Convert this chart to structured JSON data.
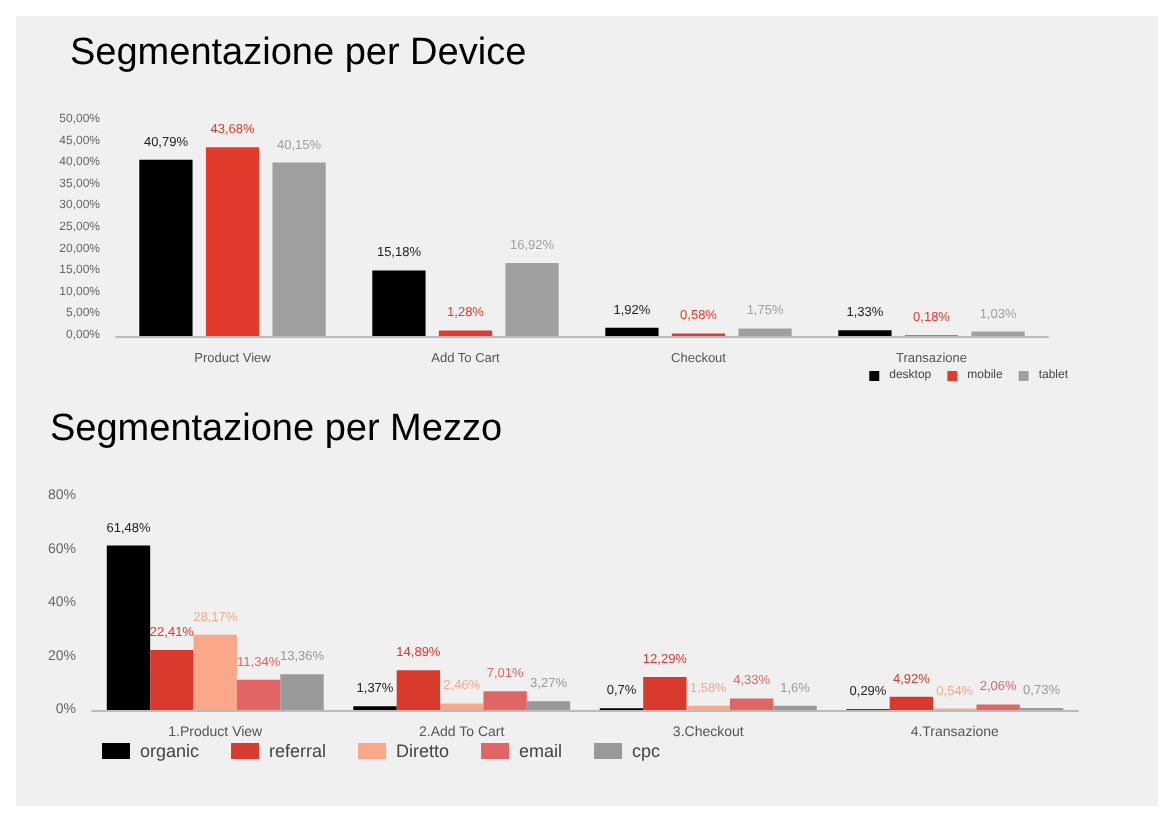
{
  "chart_data": [
    {
      "type": "bar",
      "title": "Segmentazione per Device",
      "categories": [
        "Product View",
        "Add To Cart",
        "Checkout",
        "Transazione"
      ],
      "series": [
        {
          "name": "desktop",
          "color": "#000000",
          "values": [
            40.79,
            15.18,
            1.92,
            1.33
          ],
          "value_labels": [
            "40,79%",
            "15,18%",
            "1,92%",
            "1,33%"
          ]
        },
        {
          "name": "mobile",
          "color": "#e23b2e",
          "values": [
            43.68,
            1.28,
            0.58,
            0.18
          ],
          "value_labels": [
            "43,68%",
            "1,28%",
            "0,58%",
            "0,18%"
          ]
        },
        {
          "name": "tablet",
          "color": "#a0a0a0",
          "values": [
            40.15,
            16.92,
            1.75,
            1.03
          ],
          "value_labels": [
            "40,15%",
            "16,92%",
            "1,75%",
            "1,03%"
          ]
        }
      ],
      "ylim": [
        0,
        50
      ],
      "yticks": [
        {
          "value": 0,
          "label": "0,00%"
        },
        {
          "value": 5,
          "label": "5,00%"
        },
        {
          "value": 10,
          "label": "10,00%"
        },
        {
          "value": 15,
          "label": "15,00%"
        },
        {
          "value": 20,
          "label": "20,00%"
        },
        {
          "value": 25,
          "label": "25,00%"
        },
        {
          "value": 30,
          "label": "30,00%"
        },
        {
          "value": 35,
          "label": "35,00%"
        },
        {
          "value": 40,
          "label": "40,00%"
        },
        {
          "value": 45,
          "label": "45,00%"
        },
        {
          "value": 50,
          "label": "50,00%"
        }
      ],
      "grid": false,
      "legend": "bottom right"
    },
    {
      "type": "bar",
      "title": "Segmentazione per Mezzo",
      "categories": [
        "1.Product View",
        "2.Add To Cart",
        "3.Checkout",
        "4.Transazione"
      ],
      "series": [
        {
          "name": "organic",
          "color": "#000000",
          "values": [
            61.48,
            1.37,
            0.7,
            0.29
          ],
          "value_labels": [
            "61,48%",
            "1,37%",
            "0,7%",
            "0,29%"
          ]
        },
        {
          "name": "referral",
          "color": "#d93a2e",
          "values": [
            22.41,
            14.89,
            12.29,
            4.92
          ],
          "value_labels": [
            "22,41%",
            "14,89%",
            "12,29%",
            "4,92%"
          ]
        },
        {
          "name": "Diretto",
          "color": "#f9a98a",
          "values": [
            28.17,
            2.46,
            1.58,
            0.54
          ],
          "value_labels": [
            "28,17%",
            "2,46%",
            "1,58%",
            "0,54%"
          ]
        },
        {
          "name": "email",
          "color": "#e06666",
          "values": [
            11.34,
            7.01,
            4.33,
            2.06
          ],
          "value_labels": [
            "11,34%",
            "7,01%",
            "4,33%",
            "2,06%"
          ]
        },
        {
          "name": "cpc",
          "color": "#999999",
          "values": [
            13.36,
            3.27,
            1.6,
            0.73
          ],
          "value_labels": [
            "13,36%",
            "3,27%",
            "1,6%",
            "0,73%"
          ]
        }
      ],
      "ylim": [
        0,
        80
      ],
      "yticks": [
        {
          "value": 0,
          "label": "0%"
        },
        {
          "value": 20,
          "label": "20%"
        },
        {
          "value": 40,
          "label": "40%"
        },
        {
          "value": 60,
          "label": "60%"
        },
        {
          "value": 80,
          "label": "80%"
        }
      ],
      "grid": false,
      "legend": "bottom left"
    }
  ]
}
